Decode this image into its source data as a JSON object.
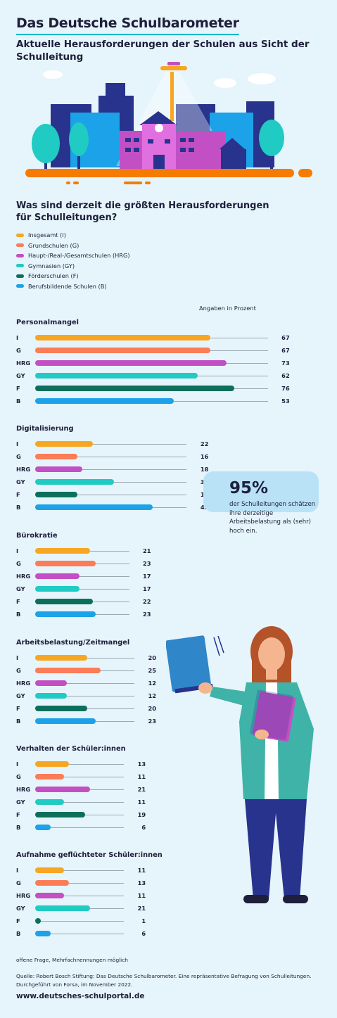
{
  "header": {
    "title": "Das Deutsche Schulbarometer",
    "subtitle": "Aktuelle Herausforderungen der Schulen aus Sicht der Schulleitung"
  },
  "question": "Was sind derzeit die größten Herausforderungen für Schulleitungen?",
  "legend": [
    {
      "label": "Insgesamt (I)",
      "color": "#f6a623"
    },
    {
      "label": "Grundschulen (G)",
      "color": "#fb7c57"
    },
    {
      "label": "Haupt-/Real-/Gesamtschulen (HRG)",
      "color": "#c34fc4"
    },
    {
      "label": "Gymnasien (GY)",
      "color": "#1fcbc2"
    },
    {
      "label": "Förderschulen (F)",
      "color": "#0c6f5b"
    },
    {
      "label": "Berufsbildende Schulen (B)",
      "color": "#1ba2e8"
    }
  ],
  "unit_note": "Angaben in Prozent",
  "chart_data": {
    "type": "bar",
    "orientation": "horizontal",
    "categories": [
      "I",
      "G",
      "HRG",
      "GY",
      "F",
      "B"
    ],
    "colors": [
      "#f6a623",
      "#fb7c57",
      "#c34fc4",
      "#1fcbc2",
      "#0c6f5b",
      "#1ba2e8"
    ],
    "xlim": [
      0,
      100
    ],
    "groups": [
      {
        "title": "Personalmangel",
        "values": [
          67,
          67,
          73,
          62,
          76,
          53
        ]
      },
      {
        "title": "Digitalisierung",
        "values": [
          22,
          16,
          18,
          30,
          16,
          45
        ]
      },
      {
        "title": "Bürokratie",
        "values": [
          21,
          23,
          17,
          17,
          22,
          23
        ]
      },
      {
        "title": "Arbeitsbelastung/Zeitmangel",
        "values": [
          20,
          25,
          12,
          12,
          20,
          23
        ]
      },
      {
        "title": "Verhalten der Schüler:innen",
        "values": [
          13,
          11,
          21,
          11,
          19,
          6
        ]
      },
      {
        "title": "Aufnahme geflüchteter Schüler:innen",
        "values": [
          11,
          13,
          11,
          21,
          1,
          6
        ]
      }
    ]
  },
  "callout": {
    "value": "95%",
    "text": "der Schulleitungen schätzen ihre derzeitige Arbeitsbelastung als (sehr) hoch ein."
  },
  "footnote": "offene Frage, Mehrfachnennungen möglich",
  "source": "Quelle: Robert Bosch Stiftung: Das Deutsche Schulbarometer. Eine repräsentative Befragung von Schulleitungen. Durchgeführt von Forsa, im November 2022.",
  "website": "www.deutsches-schulportal.de"
}
